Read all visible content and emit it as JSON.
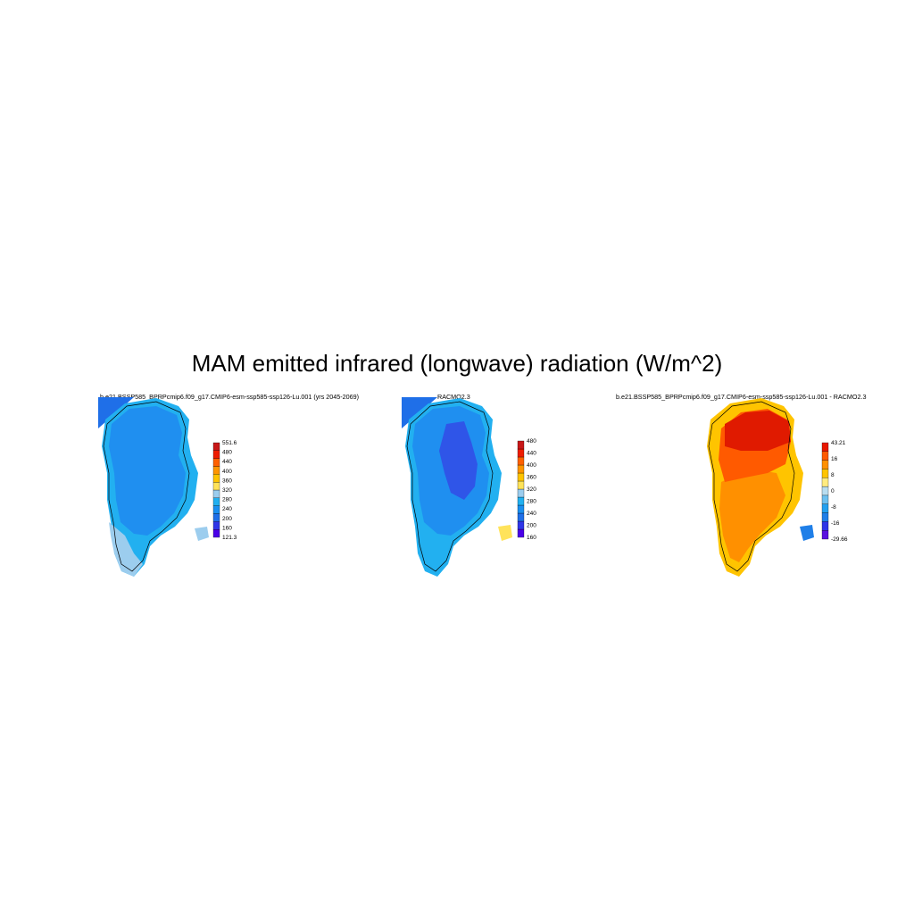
{
  "title": "MAM emitted infrared (longwave) radiation (W/m^2)",
  "panels": [
    {
      "title": "b.e21.BSSP585_BPRPcmip6.f09_g17.CMIP6-esm-ssp585-ssp126-Lu.001 (yrs 2045-2069)",
      "colorbar": {
        "colors": [
          "#4a00e8",
          "#2f36e8",
          "#1f6fe8",
          "#1a8ff0",
          "#22b0f0",
          "#9ccdee",
          "#ffe35a",
          "#ffc400",
          "#ff9500",
          "#ff6000",
          "#ee1c00",
          "#c81818"
        ],
        "labels": [
          "121.3",
          "160",
          "200",
          "240",
          "280",
          "320",
          "360",
          "400",
          "440",
          "480",
          "551.6"
        ]
      }
    },
    {
      "title": "RACMO2.3",
      "colorbar": {
        "colors": [
          "#4a00e8",
          "#2f36e8",
          "#1f6fe8",
          "#1a8ff0",
          "#22b0f0",
          "#9ccdee",
          "#ffe35a",
          "#ffc400",
          "#ff9500",
          "#ff6000",
          "#ee1c00",
          "#c81818"
        ],
        "labels": [
          "160",
          "200",
          "240",
          "280",
          "320",
          "360",
          "400",
          "440",
          "480"
        ]
      }
    },
    {
      "title": "b.e21.BSSP585_BPRPcmip6.f09_g17.CMIP6-esm-ssp585-ssp126-Lu.001 - RACMO2.3",
      "colorbar": {
        "colors": [
          "#5a10e0",
          "#2f36e8",
          "#1f7fe8",
          "#22a0f0",
          "#6cc0f0",
          "#b8ddf0",
          "#ffeb80",
          "#ffc400",
          "#ff9000",
          "#ff5a00",
          "#e81800"
        ],
        "labels": [
          "-29.66",
          "-16",
          "-8",
          "0",
          "8",
          "16",
          "43.21"
        ]
      }
    }
  ],
  "map_colors": {
    "panel1_main": "#1f8ff0",
    "panel1_edge": "#22b0f0",
    "panel1_coast": "#9ccdee",
    "panel2_main": "#1f8ff0",
    "panel2_center": "#2f55e8",
    "panel2_edge": "#22b0f0",
    "panel3_north": "#e01a00",
    "panel3_main": "#ff5a00",
    "panel3_south": "#ff9000",
    "panel3_edge": "#ffc400"
  }
}
